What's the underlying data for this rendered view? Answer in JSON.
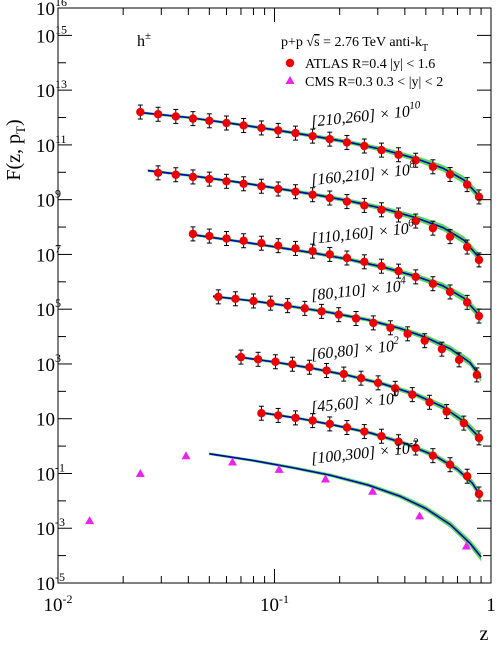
{
  "chart_data": {
    "type": "scatter",
    "xlabel": "z",
    "ylabel": "F(z, p",
    "ylabel_sub": "T",
    "ylabel_close": ")",
    "x_scale": "log",
    "y_scale": "log",
    "xlim": [
      0.01,
      1
    ],
    "ylim_exp": [
      -5,
      16
    ],
    "grid": false,
    "particle_label": "h",
    "particle_sup": "±",
    "legend": {
      "header_pp": "p+p ",
      "header_sqrt": "√",
      "header_s": "s",
      "header_energy": " = 2.76 TeV  anti-k",
      "header_sub": "T",
      "atlas_label": "ATLAS R=0.4 |y| < 1.6",
      "cms_label": "CMS     R=0.3 0.3 < |y| < 2",
      "atlas_color": "#ee0000",
      "cms_color": "#ee22ee",
      "placement": "top-right"
    },
    "x_ticks": [
      {
        "value": 0.01,
        "base": "10",
        "exp": "-2"
      },
      {
        "value": 0.1,
        "base": "10",
        "exp": "-1"
      },
      {
        "value": 1,
        "base": "1",
        "exp": ""
      }
    ],
    "y_ticks": [
      {
        "value_exp": -5,
        "base": "10",
        "exp": "-5"
      },
      {
        "value_exp": -3,
        "base": "10",
        "exp": "-3"
      },
      {
        "value_exp": -1,
        "base": "10",
        "exp": "-1"
      },
      {
        "value_exp": 1,
        "base": "10",
        "exp": ""
      },
      {
        "value_exp": 3,
        "base": "10",
        "exp": "3"
      },
      {
        "value_exp": 5,
        "base": "10",
        "exp": "5"
      },
      {
        "value_exp": 7,
        "base": "10",
        "exp": "7"
      },
      {
        "value_exp": 9,
        "base": "10",
        "exp": "9"
      },
      {
        "value_exp": 11,
        "base": "10",
        "exp": "11"
      },
      {
        "value_exp": 13,
        "base": "10",
        "exp": "13"
      },
      {
        "value_exp": 15,
        "base": "10",
        "exp": "15"
      },
      {
        "value_exp": 16,
        "base": "10",
        "exp": "16"
      }
    ],
    "band_color": "#22cc22",
    "curve_color": "#0000bb",
    "series": [
      {
        "name": "[210,260] × 10",
        "scale_exp": "10",
        "experiment": "ATLAS",
        "x": [
          0.024,
          0.029,
          0.035,
          0.042,
          0.05,
          0.06,
          0.072,
          0.087,
          0.104,
          0.125,
          0.15,
          0.18,
          0.216,
          0.26,
          0.312,
          0.374,
          0.449,
          0.539,
          0.647,
          0.776,
          0.88
        ],
        "y_exp": [
          12.2,
          12.12,
          12.04,
          11.96,
          11.88,
          11.8,
          11.71,
          11.62,
          11.53,
          11.43,
          11.32,
          11.21,
          11.09,
          10.96,
          10.81,
          10.64,
          10.44,
          10.2,
          9.92,
          9.55,
          9.1
        ],
        "curve_x": [
          0.024,
          0.04,
          0.065,
          0.1,
          0.15,
          0.22,
          0.32,
          0.45,
          0.6,
          0.75,
          0.9
        ],
        "curve_y_exp": [
          12.18,
          12.0,
          11.77,
          11.55,
          11.33,
          11.1,
          10.82,
          10.5,
          10.15,
          9.72,
          9.05
        ]
      },
      {
        "name": "[160,210] × 10",
        "scale_exp": "8",
        "experiment": "ATLAS",
        "x": [
          0.029,
          0.035,
          0.042,
          0.05,
          0.06,
          0.072,
          0.087,
          0.104,
          0.125,
          0.15,
          0.18,
          0.216,
          0.26,
          0.312,
          0.374,
          0.449,
          0.539,
          0.647,
          0.776,
          0.88
        ],
        "y_exp": [
          9.98,
          9.91,
          9.83,
          9.75,
          9.67,
          9.58,
          9.49,
          9.39,
          9.29,
          9.18,
          9.06,
          8.93,
          8.79,
          8.63,
          8.44,
          8.22,
          7.96,
          7.65,
          7.27,
          6.8
        ],
        "curve_x": [
          0.026,
          0.04,
          0.065,
          0.1,
          0.15,
          0.22,
          0.32,
          0.45,
          0.6,
          0.75,
          0.9
        ],
        "curve_y_exp": [
          10.06,
          9.89,
          9.66,
          9.43,
          9.2,
          8.96,
          8.67,
          8.34,
          7.98,
          7.52,
          6.8
        ]
      },
      {
        "name": "[110,160] × 10",
        "scale_exp": "6",
        "experiment": "ATLAS",
        "x": [
          0.042,
          0.05,
          0.06,
          0.072,
          0.087,
          0.104,
          0.125,
          0.15,
          0.18,
          0.216,
          0.26,
          0.312,
          0.374,
          0.449,
          0.539,
          0.647,
          0.776,
          0.88
        ],
        "y_exp": [
          7.75,
          7.67,
          7.58,
          7.5,
          7.41,
          7.32,
          7.22,
          7.12,
          7.0,
          6.87,
          6.73,
          6.57,
          6.39,
          6.18,
          5.93,
          5.63,
          5.25,
          4.75
        ],
        "curve_x": [
          0.042,
          0.065,
          0.1,
          0.15,
          0.22,
          0.32,
          0.45,
          0.6,
          0.75,
          0.9
        ],
        "curve_y_exp": [
          7.72,
          7.5,
          7.28,
          7.06,
          6.82,
          6.53,
          6.2,
          5.85,
          5.4,
          4.7
        ]
      },
      {
        "name": "[80,110] × 10",
        "scale_exp": "4",
        "experiment": "ATLAS",
        "x": [
          0.055,
          0.066,
          0.08,
          0.096,
          0.115,
          0.138,
          0.165,
          0.198,
          0.238,
          0.286,
          0.343,
          0.412,
          0.494,
          0.593,
          0.712,
          0.86
        ],
        "y_exp": [
          5.45,
          5.38,
          5.3,
          5.22,
          5.13,
          5.03,
          4.92,
          4.8,
          4.66,
          4.5,
          4.32,
          4.1,
          3.85,
          3.54,
          3.15,
          2.6
        ],
        "curve_x": [
          0.052,
          0.08,
          0.12,
          0.18,
          0.27,
          0.38,
          0.5,
          0.65,
          0.8,
          0.9
        ],
        "curve_y_exp": [
          5.47,
          5.3,
          5.1,
          4.88,
          4.61,
          4.3,
          3.97,
          3.55,
          3.05,
          2.5
        ]
      },
      {
        "name": "[60,80] × 10",
        "scale_exp": "2",
        "experiment": "ATLAS",
        "x": [
          0.07,
          0.084,
          0.101,
          0.121,
          0.145,
          0.174,
          0.209,
          0.251,
          0.301,
          0.361,
          0.433,
          0.52,
          0.624,
          0.749,
          0.88
        ],
        "y_exp": [
          3.25,
          3.17,
          3.08,
          2.99,
          2.88,
          2.76,
          2.63,
          2.48,
          2.31,
          2.11,
          1.88,
          1.6,
          1.26,
          0.84,
          0.3
        ],
        "curve_x": [
          0.066,
          0.1,
          0.15,
          0.22,
          0.32,
          0.45,
          0.6,
          0.75,
          0.9
        ],
        "curve_y_exp": [
          3.27,
          3.07,
          2.84,
          2.58,
          2.26,
          1.88,
          1.43,
          0.9,
          0.25
        ]
      },
      {
        "name": "[45,60] × 10",
        "scale_exp": "0",
        "experiment": "ATLAS",
        "x": [
          0.087,
          0.104,
          0.125,
          0.15,
          0.18,
          0.216,
          0.26,
          0.312,
          0.374,
          0.449,
          0.539,
          0.647,
          0.776,
          0.88
        ],
        "y_exp": [
          1.2,
          1.12,
          1.03,
          0.93,
          0.81,
          0.68,
          0.53,
          0.36,
          0.16,
          -0.07,
          -0.35,
          -0.68,
          -1.1,
          -1.75
        ],
        "curve_x": [
          0.087,
          0.13,
          0.19,
          0.28,
          0.4,
          0.55,
          0.7,
          0.82,
          0.9
        ],
        "curve_y_exp": [
          1.22,
          1.01,
          0.76,
          0.47,
          0.1,
          -0.35,
          -0.85,
          -1.35,
          -1.85
        ]
      },
      {
        "name": "[100,300] × 10",
        "scale_exp": "-2",
        "experiment": "CMS",
        "x": [
          0.014,
          0.024,
          0.039,
          0.064,
          0.105,
          0.172,
          0.284,
          0.468,
          0.77
        ],
        "y_exp": [
          -2.72,
          -1.0,
          -0.35,
          -0.58,
          -0.85,
          -1.2,
          -1.65,
          -2.55,
          -3.65
        ],
        "curve_x": [
          0.05,
          0.08,
          0.12,
          0.18,
          0.27,
          0.38,
          0.5,
          0.65,
          0.8,
          0.9
        ],
        "curve_y_exp": [
          -0.28,
          -0.53,
          -0.78,
          -1.06,
          -1.42,
          -1.83,
          -2.28,
          -2.87,
          -3.55,
          -4.05
        ]
      }
    ]
  }
}
